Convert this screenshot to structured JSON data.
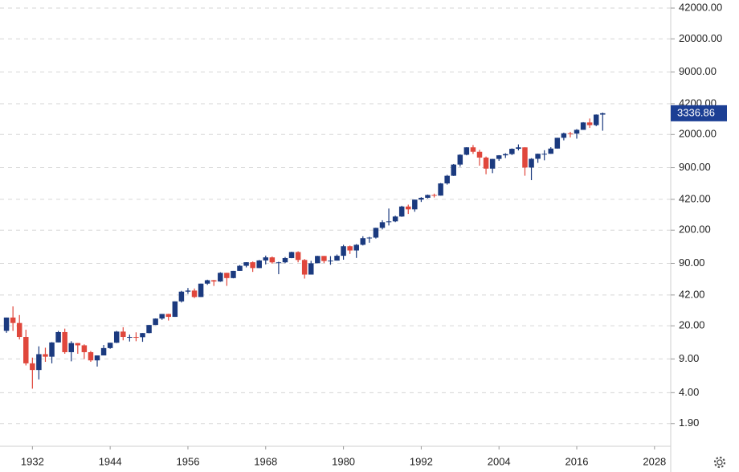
{
  "chart_data": {
    "type": "candlestick",
    "log_scale": true,
    "grid": true,
    "up_color": "#1b3a7f",
    "down_color": "#e0473c",
    "price_label_color": "#1c3f94",
    "x": [
      1928,
      1929,
      1930,
      1931,
      1932,
      1933,
      1934,
      1935,
      1936,
      1937,
      1938,
      1939,
      1940,
      1941,
      1942,
      1943,
      1944,
      1945,
      1946,
      1947,
      1948,
      1949,
      1950,
      1951,
      1952,
      1953,
      1954,
      1955,
      1956,
      1957,
      1958,
      1959,
      1960,
      1961,
      1962,
      1963,
      1964,
      1965,
      1966,
      1967,
      1968,
      1969,
      1970,
      1971,
      1972,
      1973,
      1974,
      1975,
      1976,
      1977,
      1978,
      1979,
      1980,
      1981,
      1982,
      1983,
      1984,
      1985,
      1986,
      1987,
      1988,
      1989,
      1990,
      1991,
      1992,
      1993,
      1994,
      1995,
      1996,
      1997,
      1998,
      1999,
      2000,
      2001,
      2002,
      2003,
      2004,
      2005,
      2006,
      2007,
      2008,
      2009,
      2010,
      2011,
      2012,
      2013,
      2014,
      2015,
      2016,
      2017,
      2018,
      2019,
      2020
    ],
    "open": [
      17.7,
      24.4,
      21.4,
      15.3,
      8.1,
      6.9,
      10.1,
      9.5,
      13.4,
      17.2,
      10.6,
      13.2,
      12.5,
      10.6,
      8.7,
      9.8,
      11.7,
      13.3,
      17.4,
      15.3,
      15.3,
      15.2,
      16.8,
      20.4,
      23.8,
      26.6,
      24.8,
      36,
      45.5,
      46.7,
      40,
      55.2,
      59.9,
      58.1,
      71.6,
      63.1,
      75,
      84.8,
      92.4,
      80.3,
      96.5,
      103.9,
      92.1,
      92.2,
      102.1,
      118.1,
      97.6,
      68.6,
      90.2,
      107.5,
      95.1,
      96.1,
      107.9,
      135.8,
      122.6,
      140.6,
      164.9,
      167.2,
      211.3,
      242.2,
      247.1,
      277.7,
      353.4,
      330.2,
      417.1,
      435.7,
      466.5,
      459.3,
      615.9,
      740.7,
      970.4,
      1229.2,
      1469.3,
      1320.3,
      1148.1,
      879.8,
      1111.9,
      1211.9,
      1248.3,
      1418.3,
      1468.4,
      903.3,
      1115.1,
      1257.6,
      1257.6,
      1426.2,
      1848.4,
      2058.9,
      2043.9,
      2238.8,
      2673.6,
      2506.9,
      3230.8
    ],
    "high": [
      24.4,
      31.9,
      25.9,
      18.2,
      9.3,
      12.2,
      11.8,
      13.5,
      17.7,
      18.7,
      13.8,
      13.2,
      12.8,
      10.9,
      9.8,
      12.6,
      13.3,
      17.7,
      19.3,
      16.2,
      17.1,
      16.8,
      20.4,
      23.9,
      26.6,
      26.7,
      36,
      46.4,
      49.7,
      49.1,
      55.2,
      60.7,
      60.4,
      72.6,
      71.6,
      75,
      86.3,
      92.6,
      94.1,
      97.6,
      108.4,
      106.2,
      93.5,
      104.8,
      119.1,
      120.2,
      99.8,
      95.6,
      107.8,
      107.5,
      107,
      111.3,
      140.5,
      138.1,
      143,
      172.7,
      170.4,
      212,
      254,
      336.8,
      283.7,
      359.8,
      369.8,
      417.1,
      442.7,
      471.3,
      482,
      621.7,
      757,
      983.8,
      1241.8,
      1473,
      1552.9,
      1383,
      1176.9,
      1112.6,
      1217.9,
      1275.8,
      1431.8,
      1576.1,
      1471.8,
      1130.4,
      1262.6,
      1370.6,
      1474.5,
      1849.4,
      2093.6,
      2134.7,
      2277.5,
      2694.97,
      2940.9,
      3247.9,
      3393.5
    ],
    "low": [
      16.9,
      17.7,
      14.4,
      7.7,
      4.4,
      5.5,
      8.4,
      8.1,
      13.4,
      10.2,
      8.5,
      10.2,
      8.99,
      8.4,
      7.5,
      9.8,
      11.5,
      13.2,
      14.1,
      13.7,
      13.8,
      13.6,
      16.7,
      20.4,
      23.1,
      22.7,
      24.8,
      35,
      43.1,
      38.98,
      40,
      53.6,
      52.2,
      57.6,
      52.3,
      62.7,
      75,
      81.6,
      73.2,
      80.3,
      87.7,
      89.2,
      69.3,
      90.2,
      101.7,
      92.2,
      62.3,
      68.6,
      90.2,
      90.7,
      86.9,
      96.1,
      98.2,
      112.8,
      102.4,
      138.3,
      147.8,
      163.4,
      203.5,
      223.9,
      242.6,
      275.3,
      295.5,
      311.5,
      394.4,
      429,
      438.9,
      459.3,
      598.5,
      737,
      923,
      1212,
      1254,
      944.8,
      768.6,
      788.9,
      1060.7,
      1136,
      1219.3,
      1363.98,
      741,
      666.8,
      1010.9,
      1074.8,
      1257.6,
      1426.2,
      1737.9,
      1867,
      1810,
      2238.8,
      2346.6,
      2443.96,
      2191.9
    ],
    "close": [
      24.4,
      21.4,
      15.3,
      8.1,
      6.9,
      10.1,
      9.5,
      13.4,
      17.2,
      10.6,
      13.2,
      12.5,
      10.6,
      8.7,
      9.8,
      11.7,
      13.3,
      17.4,
      15.3,
      15.3,
      15.2,
      16.8,
      20.4,
      23.8,
      26.6,
      24.8,
      36,
      45.5,
      46.7,
      40,
      55.2,
      59.9,
      58.1,
      71.6,
      63.1,
      75,
      84.8,
      92.4,
      80.3,
      96.5,
      103.9,
      92.1,
      92.2,
      102.1,
      118.1,
      97.6,
      68.6,
      90.2,
      107.5,
      95.1,
      96.1,
      107.9,
      135.8,
      122.6,
      140.6,
      164.9,
      167.2,
      211.3,
      242.2,
      247.1,
      277.7,
      353.4,
      330.2,
      417.1,
      435.7,
      466.5,
      459.3,
      615.9,
      740.7,
      970.4,
      1229.2,
      1469.3,
      1320.3,
      1148.1,
      879.8,
      1111.9,
      1211.9,
      1248.3,
      1418.3,
      1468.4,
      903.3,
      1115.1,
      1257.6,
      1257.6,
      1426.2,
      1848.4,
      2058.9,
      2043.9,
      2238.8,
      2673.6,
      2506.9,
      3230.8,
      3336.86
    ],
    "last_price": 3336.86,
    "xlim": [
      1927,
      2030.5
    ],
    "xticks": [
      1932,
      1944,
      1956,
      1968,
      1980,
      1992,
      2004,
      2016,
      2028
    ],
    "ylim": [
      1.1,
      51000
    ],
    "yticks": [
      {
        "value": 42000,
        "label": "42000.00"
      },
      {
        "value": 20000,
        "label": "20000.00"
      },
      {
        "value": 9000,
        "label": "9000.00"
      },
      {
        "value": 4200,
        "label": "4200.00"
      },
      {
        "value": 2000,
        "label": "2000.00"
      },
      {
        "value": 900,
        "label": "900.00"
      },
      {
        "value": 420,
        "label": "420.00"
      },
      {
        "value": 200,
        "label": "200.00"
      },
      {
        "value": 90,
        "label": "90.00"
      },
      {
        "value": 42,
        "label": "42.00"
      },
      {
        "value": 20,
        "label": "20.00"
      },
      {
        "value": 9,
        "label": "9.00"
      },
      {
        "value": 4,
        "label": "4.00"
      },
      {
        "value": 1.9,
        "label": "1.90"
      }
    ]
  }
}
